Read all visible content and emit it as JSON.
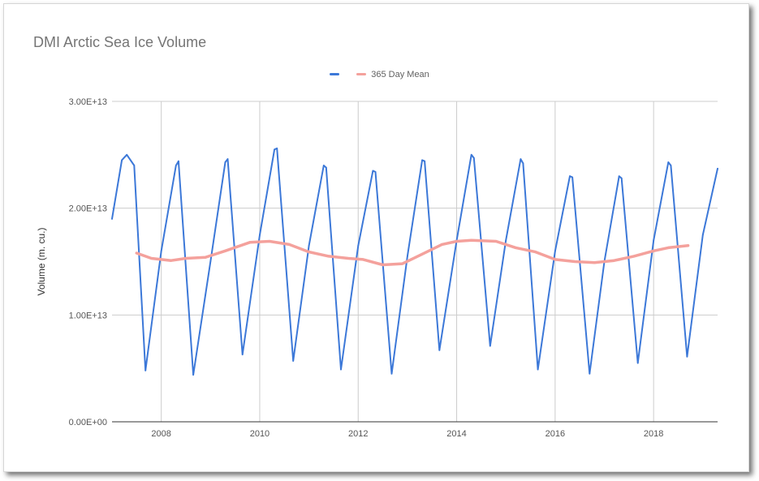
{
  "chart_data": {
    "type": "line",
    "title": "DMI Arctic Sea Ice Volume",
    "xlabel": "",
    "ylabel": "Volume (m. cu.)",
    "xlim": [
      2007.0,
      2019.3
    ],
    "ylim": [
      0,
      30000000000000
    ],
    "x_ticks": [
      2008,
      2010,
      2012,
      2014,
      2016,
      2018
    ],
    "x_tick_labels": [
      "2008",
      "2010",
      "2012",
      "2014",
      "2016",
      "2018"
    ],
    "y_ticks": [
      0,
      10000000000000,
      20000000000000,
      30000000000000
    ],
    "y_tick_labels": [
      "0.00E+00",
      "1.00E+13",
      "2.00E+13",
      "3.00E+13"
    ],
    "grid": true,
    "legend_position": "top",
    "series": [
      {
        "name": "",
        "color": "#3c78d8",
        "x": [
          2007.0,
          2007.2,
          2007.3,
          2007.45,
          2007.68,
          2008.0,
          2008.3,
          2008.35,
          2008.65,
          2009.0,
          2009.3,
          2009.35,
          2009.65,
          2010.0,
          2010.3,
          2010.35,
          2010.68,
          2011.0,
          2011.3,
          2011.35,
          2011.65,
          2012.0,
          2012.3,
          2012.35,
          2012.68,
          2013.0,
          2013.3,
          2013.35,
          2013.65,
          2014.0,
          2014.3,
          2014.35,
          2014.68,
          2015.0,
          2015.3,
          2015.35,
          2015.65,
          2016.0,
          2016.3,
          2016.35,
          2016.7,
          2017.0,
          2017.3,
          2017.35,
          2017.68,
          2018.0,
          2018.3,
          2018.35,
          2018.68,
          2019.0,
          2019.3
        ],
        "y": [
          19000000000000,
          24500000000000,
          25000000000000,
          24000000000000,
          4800000000000,
          16000000000000,
          24000000000000,
          24400000000000,
          4400000000000,
          15000000000000,
          24300000000000,
          24600000000000,
          6300000000000,
          17500000000000,
          25500000000000,
          25600000000000,
          5700000000000,
          16500000000000,
          24000000000000,
          23800000000000,
          4900000000000,
          16500000000000,
          23500000000000,
          23400000000000,
          4500000000000,
          15500000000000,
          24500000000000,
          24400000000000,
          6700000000000,
          17000000000000,
          25000000000000,
          24700000000000,
          7100000000000,
          17000000000000,
          24600000000000,
          24200000000000,
          4900000000000,
          16000000000000,
          23000000000000,
          22900000000000,
          4500000000000,
          15000000000000,
          23000000000000,
          22800000000000,
          5500000000000,
          17000000000000,
          24300000000000,
          24000000000000,
          6100000000000,
          17500000000000,
          23700000000000
        ]
      },
      {
        "name": "365 Day Mean",
        "color": "#f4a19c",
        "x": [
          2007.5,
          2007.8,
          2008.2,
          2008.5,
          2008.9,
          2009.3,
          2009.8,
          2010.2,
          2010.6,
          2011.0,
          2011.4,
          2011.8,
          2012.1,
          2012.5,
          2012.9,
          2013.3,
          2013.7,
          2014.0,
          2014.3,
          2014.8,
          2015.2,
          2015.6,
          2016.0,
          2016.4,
          2016.8,
          2017.2,
          2017.6,
          2018.0,
          2018.3,
          2018.7
        ],
        "y": [
          15800000000000,
          15300000000000,
          15100000000000,
          15300000000000,
          15400000000000,
          16000000000000,
          16800000000000,
          16900000000000,
          16600000000000,
          15900000000000,
          15500000000000,
          15300000000000,
          15200000000000,
          14700000000000,
          14800000000000,
          15700000000000,
          16600000000000,
          16900000000000,
          17000000000000,
          16900000000000,
          16300000000000,
          15900000000000,
          15200000000000,
          15000000000000,
          14900000000000,
          15100000000000,
          15500000000000,
          16000000000000,
          16300000000000,
          16500000000000
        ]
      }
    ]
  }
}
